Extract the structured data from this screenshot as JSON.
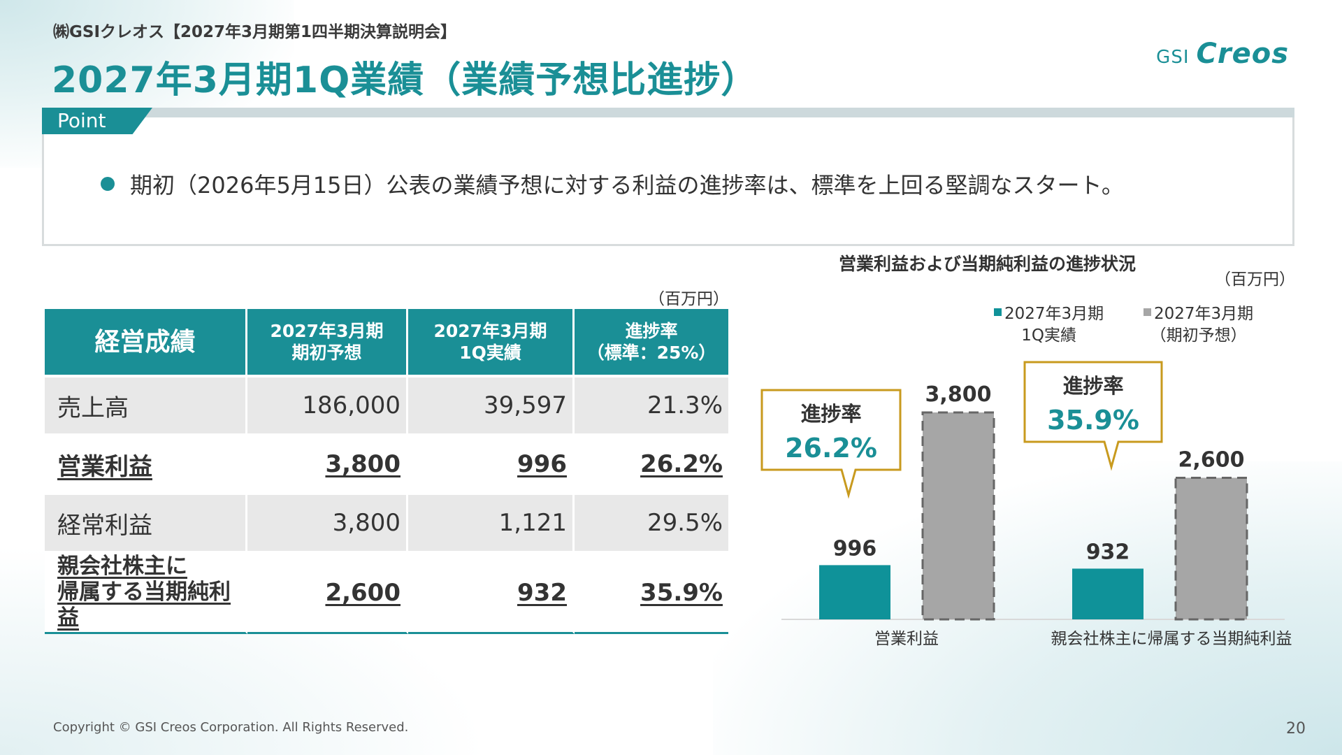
{
  "header": {
    "subtitle": "㈱GSIクレオス【2027年3月期第1四半期決算説明会】",
    "title": "2027年3月期1Q業績（業績予想比進捗）",
    "logo_gsi": "GSI",
    "logo_creos": "Creos"
  },
  "point": {
    "tab_label": "Point",
    "text": "期初（2026年5月15日）公表の業績予想に対する利益の進捗率は、標準を上回る堅調なスタート。"
  },
  "table": {
    "unit": "（百万円）",
    "headers": [
      "経営成績",
      "2027年3月期\n期初予想",
      "2027年3月期\n1Q実績",
      "進捗率\n（標準：25%）"
    ],
    "header_lines": [
      [
        "経営成績"
      ],
      [
        "2027年3月期",
        "期初予想"
      ],
      [
        "2027年3月期",
        "1Q実績"
      ],
      [
        "進捗率",
        "（標準：25%）"
      ]
    ],
    "rows": [
      {
        "label": "売上高",
        "forecast": "186,000",
        "actual": "39,597",
        "progress": "21.3%"
      },
      {
        "label": "営業利益",
        "forecast": "3,800",
        "actual": "996",
        "progress": "26.2%"
      },
      {
        "label": "経常利益",
        "forecast": "3,800",
        "actual": "1,121",
        "progress": "29.5%"
      },
      {
        "label_lines": [
          "親会社株主に",
          "帰属する当期純利益"
        ],
        "forecast": "2,600",
        "actual": "932",
        "progress": "35.9%"
      }
    ]
  },
  "chart_data": {
    "type": "bar",
    "title": "営業利益および当期純利益の進捗状況",
    "unit": "（百万円）",
    "categories": [
      "営業利益",
      "親会社株主に帰属する当期純利益"
    ],
    "series": [
      {
        "name": "2027年3月期\n1Q実績",
        "name_lines": [
          "2027年3月期",
          "1Q実績"
        ],
        "values": [
          996,
          932
        ],
        "color": "#0f9299"
      },
      {
        "name": "2027年3月期\n（期初予想）",
        "name_lines": [
          "2027年3月期",
          "（期初予想）"
        ],
        "values": [
          3800,
          2600
        ],
        "color": "#a6a6a6"
      }
    ],
    "data_labels": [
      [
        "996",
        "932"
      ],
      [
        "3,800",
        "2,600"
      ]
    ],
    "callouts": [
      {
        "label": "進捗率",
        "value": "26.2%"
      },
      {
        "label": "進捗率",
        "value": "35.9%"
      }
    ],
    "ylim": [
      0,
      3800
    ],
    "grid": false,
    "legend_position": "top-right"
  },
  "footer": {
    "copyright": "Copyright © GSI Creos Corporation. All Rights Reserved.",
    "page_number": "20"
  },
  "colors": {
    "accent": "#1a8f96",
    "bar_actual": "#0f9299",
    "bar_forecast": "#a6a6a6",
    "callout_border": "#c89a1e"
  }
}
